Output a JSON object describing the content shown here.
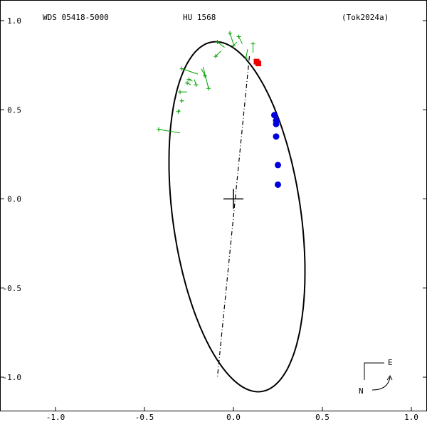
{
  "header": {
    "left": "WDS 05418-5000",
    "center": "HU 1568",
    "right": "(Tok2024a)"
  },
  "compass": {
    "east": "E",
    "north": "N"
  },
  "chart_data": {
    "type": "scatter",
    "title": "HU 1568",
    "xlim": [
      -1.0,
      1.0
    ],
    "ylim": [
      -1.0,
      1.0
    ],
    "x_ticks": [
      "-1.0",
      "-0.5",
      "0.0",
      "0.5",
      "1.0"
    ],
    "y_ticks": [
      "1.0",
      "0.5",
      "0.0",
      "-0.5",
      "-1.0"
    ],
    "x_tick_values": [
      -1.0,
      -0.5,
      0.0,
      0.5,
      1.0
    ],
    "y_tick_values": [
      1.0,
      0.5,
      0.0,
      -0.5,
      -1.0
    ],
    "orbit_ellipse": {
      "center": [
        0.02,
        -0.1
      ],
      "semi_major": 0.99,
      "semi_minor": 0.36,
      "tilt_deg": 8
    },
    "line_of_nodes": [
      [
        0.09,
        0.8
      ],
      [
        -0.09,
        -1.0
      ]
    ],
    "primary_marker": [
      0.0,
      0.0
    ],
    "green_observations": [
      {
        "obs": [
          -0.42,
          0.39
        ],
        "fit": [
          -0.3,
          0.37
        ]
      },
      {
        "obs": [
          -0.31,
          0.49
        ],
        "fit": [
          -0.3,
          0.5
        ]
      },
      {
        "obs": [
          -0.29,
          0.55
        ],
        "fit": [
          -0.28,
          0.55
        ]
      },
      {
        "obs": [
          -0.3,
          0.6
        ],
        "fit": [
          -0.26,
          0.6
        ]
      },
      {
        "obs": [
          -0.26,
          0.65
        ],
        "fit": [
          -0.24,
          0.64
        ]
      },
      {
        "obs": [
          -0.25,
          0.67
        ],
        "fit": [
          -0.23,
          0.66
        ]
      },
      {
        "obs": [
          -0.21,
          0.64
        ],
        "fit": [
          -0.22,
          0.67
        ]
      },
      {
        "obs": [
          -0.29,
          0.73
        ],
        "fit": [
          -0.2,
          0.7
        ]
      },
      {
        "obs": [
          -0.16,
          0.69
        ],
        "fit": [
          -0.18,
          0.73
        ]
      },
      {
        "obs": [
          -0.14,
          0.62
        ],
        "fit": [
          -0.17,
          0.74
        ]
      },
      {
        "obs": [
          -0.1,
          0.8
        ],
        "fit": [
          -0.07,
          0.83
        ]
      },
      {
        "obs": [
          -0.09,
          0.88
        ],
        "fit": [
          -0.05,
          0.85
        ]
      },
      {
        "obs": [
          -0.02,
          0.93
        ],
        "fit": [
          0.0,
          0.87
        ]
      },
      {
        "obs": [
          0.0,
          0.86
        ],
        "fit": [
          0.02,
          0.88
        ]
      },
      {
        "obs": [
          0.03,
          0.91
        ],
        "fit": [
          0.05,
          0.87
        ]
      },
      {
        "obs": [
          0.11,
          0.87
        ],
        "fit": [
          0.11,
          0.82
        ]
      },
      {
        "obs": [
          0.07,
          0.79
        ],
        "fit": [
          0.08,
          0.84
        ]
      }
    ],
    "blue_points": [
      [
        0.23,
        0.47
      ],
      [
        0.24,
        0.44
      ],
      [
        0.24,
        0.42
      ],
      [
        0.24,
        0.35
      ],
      [
        0.25,
        0.19
      ],
      [
        0.25,
        0.08
      ]
    ],
    "red_points": [
      [
        0.13,
        0.77
      ],
      [
        0.14,
        0.76
      ]
    ],
    "colors": {
      "orbit": "#000000",
      "green": "#00a000",
      "blue": "#0000dd",
      "red": "#ee0000"
    }
  }
}
